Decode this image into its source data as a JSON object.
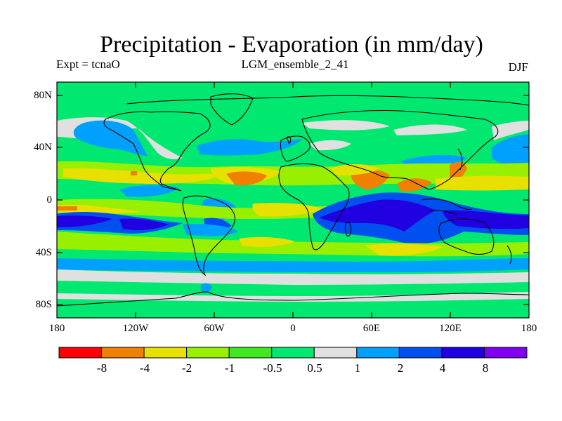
{
  "title": "Precipitation - Evaporation (in mm/day)",
  "experiment": "Expt = tcnaO",
  "run": "LGM_ensemble_2_41",
  "season": "DJF",
  "lat_labels": [
    "80N",
    "40N",
    "0",
    "40S",
    "80S"
  ],
  "lon_labels": [
    "180",
    "120W",
    "60W",
    "0",
    "60E",
    "120E",
    "180"
  ],
  "colorbar": {
    "colors": [
      "#ff0000",
      "#f08000",
      "#e8e000",
      "#98f000",
      "#40e820",
      "#00e870",
      "#e0e0e0",
      "#00a0ff",
      "#0050f0",
      "#2000e0",
      "#8000f0"
    ],
    "labels": [
      "-8",
      "-4",
      "-2",
      "-1",
      "-0.5",
      "0.5",
      "1",
      "2",
      "4",
      "8"
    ]
  },
  "colors": {
    "background": "#00e870",
    "frame": "#000000"
  }
}
